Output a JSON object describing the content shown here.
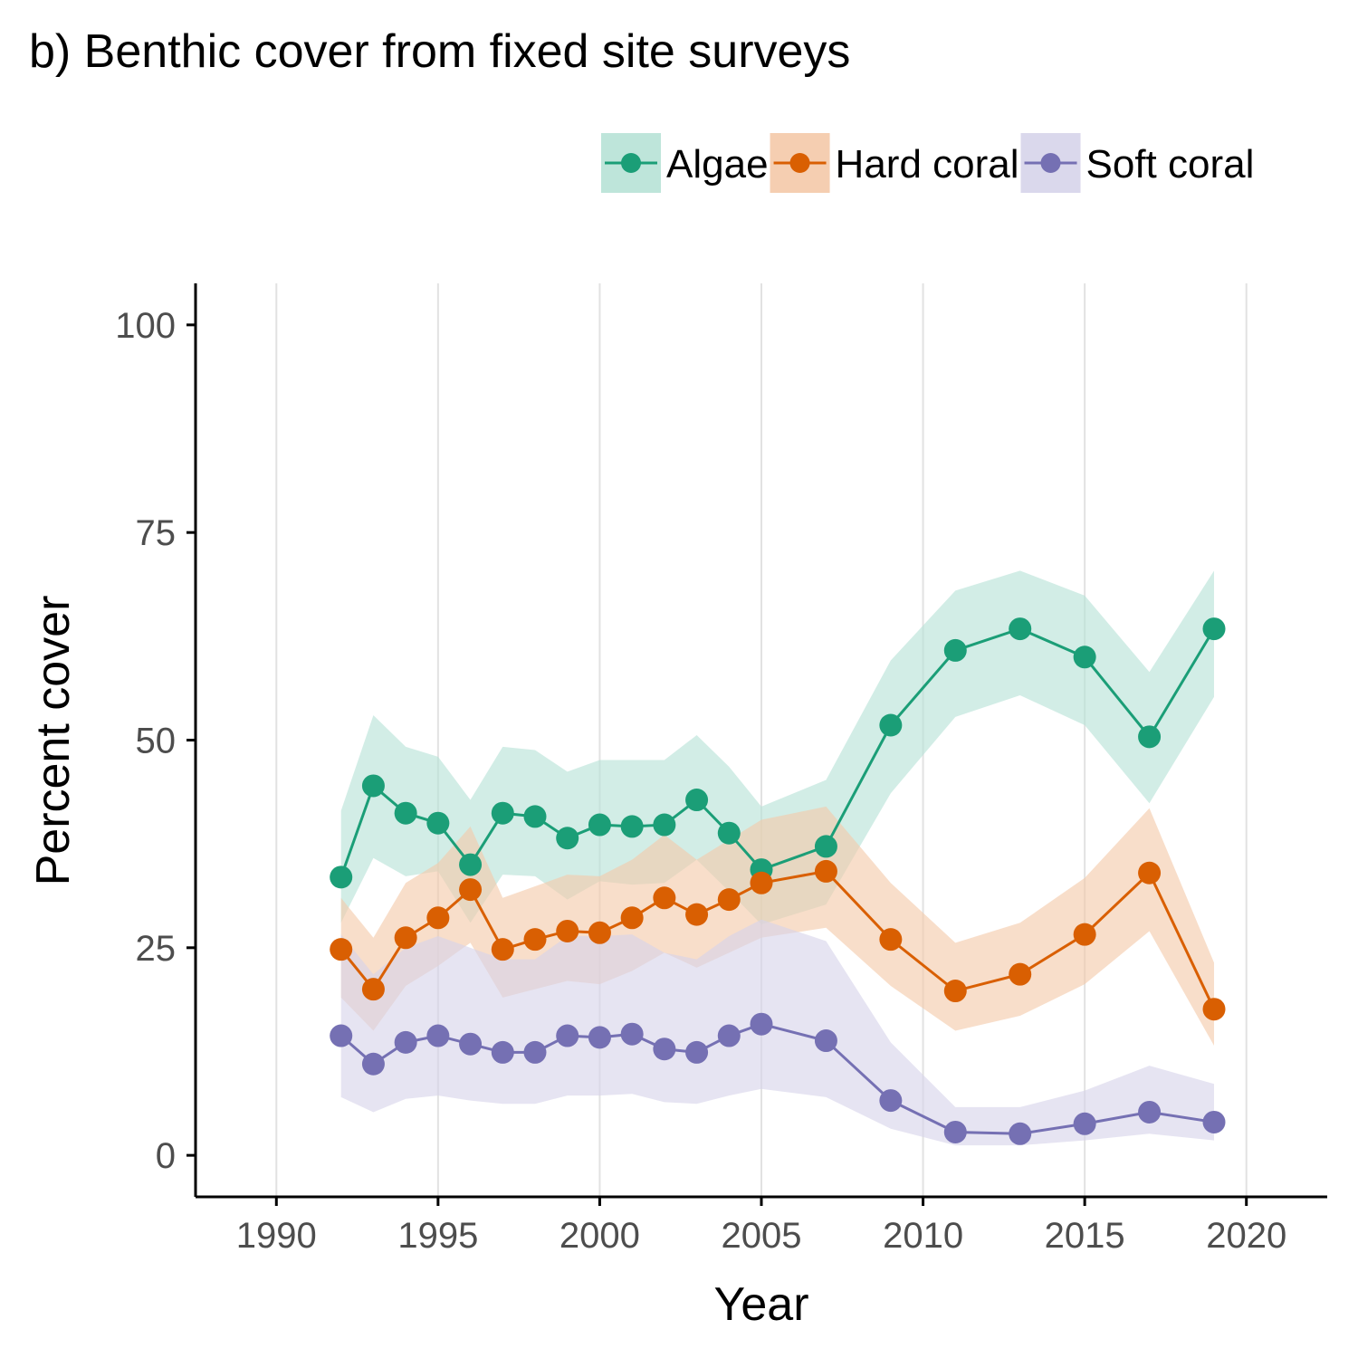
{
  "chart_data": {
    "type": "line",
    "title": "b) Benthic cover from fixed site surveys",
    "xlabel": "Year",
    "ylabel": "Percent cover",
    "xlim": [
      1987.5,
      2022.5
    ],
    "ylim": [
      -5,
      105
    ],
    "x_ticks": [
      1990,
      1995,
      2000,
      2005,
      2010,
      2015,
      2020
    ],
    "y_ticks": [
      0,
      25,
      50,
      75,
      100
    ],
    "legend_position": "top-right",
    "grid": "vertical major gridlines",
    "series": [
      {
        "name": "Algae",
        "color": "#1b9e77",
        "band_color": "#b7e2d6",
        "points": [
          {
            "x": 1992,
            "y": 33.5,
            "lo": 28.0,
            "hi": 41.5
          },
          {
            "x": 1993,
            "y": 44.5,
            "lo": 35.8,
            "hi": 53.0
          },
          {
            "x": 1994,
            "y": 41.2,
            "lo": 33.6,
            "hi": 49.2
          },
          {
            "x": 1995,
            "y": 40.0,
            "lo": 34.2,
            "hi": 48.0
          },
          {
            "x": 1996,
            "y": 35.0,
            "lo": 28.0,
            "hi": 42.8
          },
          {
            "x": 1997,
            "y": 41.2,
            "lo": 33.8,
            "hi": 49.2
          },
          {
            "x": 1998,
            "y": 40.8,
            "lo": 33.6,
            "hi": 48.8
          },
          {
            "x": 1999,
            "y": 38.2,
            "lo": 30.8,
            "hi": 46.2
          },
          {
            "x": 2000,
            "y": 39.8,
            "lo": 33.0,
            "hi": 47.6
          },
          {
            "x": 2001,
            "y": 39.6,
            "lo": 32.6,
            "hi": 47.6
          },
          {
            "x": 2002,
            "y": 39.8,
            "lo": 32.8,
            "hi": 47.6
          },
          {
            "x": 2003,
            "y": 42.8,
            "lo": 35.6,
            "hi": 50.6
          },
          {
            "x": 2004,
            "y": 38.8,
            "lo": 31.8,
            "hi": 46.8
          },
          {
            "x": 2005,
            "y": 34.4,
            "lo": 27.8,
            "hi": 42.0
          },
          {
            "x": 2007,
            "y": 37.2,
            "lo": 30.2,
            "hi": 45.2
          },
          {
            "x": 2009,
            "y": 51.8,
            "lo": 43.6,
            "hi": 59.6
          },
          {
            "x": 2011,
            "y": 60.8,
            "lo": 52.8,
            "hi": 68.0
          },
          {
            "x": 2013,
            "y": 63.4,
            "lo": 55.4,
            "hi": 70.4
          },
          {
            "x": 2015,
            "y": 60.0,
            "lo": 51.8,
            "hi": 67.4
          },
          {
            "x": 2017,
            "y": 50.4,
            "lo": 42.4,
            "hi": 58.2
          },
          {
            "x": 2019,
            "y": 63.4,
            "lo": 55.2,
            "hi": 70.4
          }
        ]
      },
      {
        "name": "Hard coral",
        "color": "#d95f02",
        "band_color": "#f4c9a9",
        "points": [
          {
            "x": 1992,
            "y": 24.8,
            "lo": 19.0,
            "hi": 31.0
          },
          {
            "x": 1993,
            "y": 20.0,
            "lo": 15.0,
            "hi": 26.2
          },
          {
            "x": 1994,
            "y": 26.2,
            "lo": 20.4,
            "hi": 32.8
          },
          {
            "x": 1995,
            "y": 28.6,
            "lo": 22.8,
            "hi": 35.2
          },
          {
            "x": 1996,
            "y": 32.0,
            "lo": 25.6,
            "hi": 39.6
          },
          {
            "x": 1997,
            "y": 24.8,
            "lo": 19.0,
            "hi": 31.0
          },
          {
            "x": 1998,
            "y": 26.0,
            "lo": 20.0,
            "hi": 32.4
          },
          {
            "x": 1999,
            "y": 27.0,
            "lo": 21.0,
            "hi": 33.8
          },
          {
            "x": 2000,
            "y": 26.8,
            "lo": 20.6,
            "hi": 33.6
          },
          {
            "x": 2001,
            "y": 28.6,
            "lo": 22.2,
            "hi": 35.6
          },
          {
            "x": 2002,
            "y": 31.0,
            "lo": 24.4,
            "hi": 38.6
          },
          {
            "x": 2003,
            "y": 29.0,
            "lo": 22.6,
            "hi": 35.6
          },
          {
            "x": 2004,
            "y": 30.8,
            "lo": 24.4,
            "hi": 38.0
          },
          {
            "x": 2005,
            "y": 32.8,
            "lo": 26.2,
            "hi": 40.4
          },
          {
            "x": 2007,
            "y": 34.2,
            "lo": 27.4,
            "hi": 42.0
          },
          {
            "x": 2009,
            "y": 26.0,
            "lo": 20.4,
            "hi": 32.8
          },
          {
            "x": 2011,
            "y": 19.8,
            "lo": 15.0,
            "hi": 25.6
          },
          {
            "x": 2013,
            "y": 21.8,
            "lo": 16.8,
            "hi": 28.0
          },
          {
            "x": 2015,
            "y": 26.6,
            "lo": 20.6,
            "hi": 33.4
          },
          {
            "x": 2017,
            "y": 34.0,
            "lo": 27.0,
            "hi": 41.8
          },
          {
            "x": 2019,
            "y": 17.6,
            "lo": 13.2,
            "hi": 23.2
          }
        ]
      },
      {
        "name": "Soft coral",
        "color": "#7570b3",
        "band_color": "#d6d4ea",
        "points": [
          {
            "x": 1992,
            "y": 14.4,
            "lo": 7.0,
            "hi": 26.6
          },
          {
            "x": 1993,
            "y": 11.0,
            "lo": 5.2,
            "hi": 21.8
          },
          {
            "x": 1994,
            "y": 13.6,
            "lo": 6.8,
            "hi": 25.0
          },
          {
            "x": 1995,
            "y": 14.4,
            "lo": 7.2,
            "hi": 26.4
          },
          {
            "x": 1996,
            "y": 13.4,
            "lo": 6.6,
            "hi": 25.0
          },
          {
            "x": 1997,
            "y": 12.4,
            "lo": 6.2,
            "hi": 23.6
          },
          {
            "x": 1998,
            "y": 12.4,
            "lo": 6.2,
            "hi": 23.6
          },
          {
            "x": 1999,
            "y": 14.4,
            "lo": 7.2,
            "hi": 26.4
          },
          {
            "x": 2000,
            "y": 14.2,
            "lo": 7.2,
            "hi": 26.4
          },
          {
            "x": 2001,
            "y": 14.6,
            "lo": 7.4,
            "hi": 26.6
          },
          {
            "x": 2002,
            "y": 12.8,
            "lo": 6.4,
            "hi": 24.4
          },
          {
            "x": 2003,
            "y": 12.4,
            "lo": 6.2,
            "hi": 23.6
          },
          {
            "x": 2004,
            "y": 14.4,
            "lo": 7.2,
            "hi": 26.4
          },
          {
            "x": 2005,
            "y": 15.8,
            "lo": 8.0,
            "hi": 28.4
          },
          {
            "x": 2007,
            "y": 13.8,
            "lo": 7.0,
            "hi": 25.8
          },
          {
            "x": 2009,
            "y": 6.6,
            "lo": 3.2,
            "hi": 13.6
          },
          {
            "x": 2011,
            "y": 2.8,
            "lo": 1.2,
            "hi": 5.8
          },
          {
            "x": 2013,
            "y": 2.6,
            "lo": 1.2,
            "hi": 5.8
          },
          {
            "x": 2015,
            "y": 3.8,
            "lo": 1.8,
            "hi": 7.8
          },
          {
            "x": 2017,
            "y": 5.2,
            "lo": 2.6,
            "hi": 10.8
          },
          {
            "x": 2019,
            "y": 4.0,
            "lo": 1.8,
            "hi": 8.6
          }
        ]
      }
    ]
  }
}
